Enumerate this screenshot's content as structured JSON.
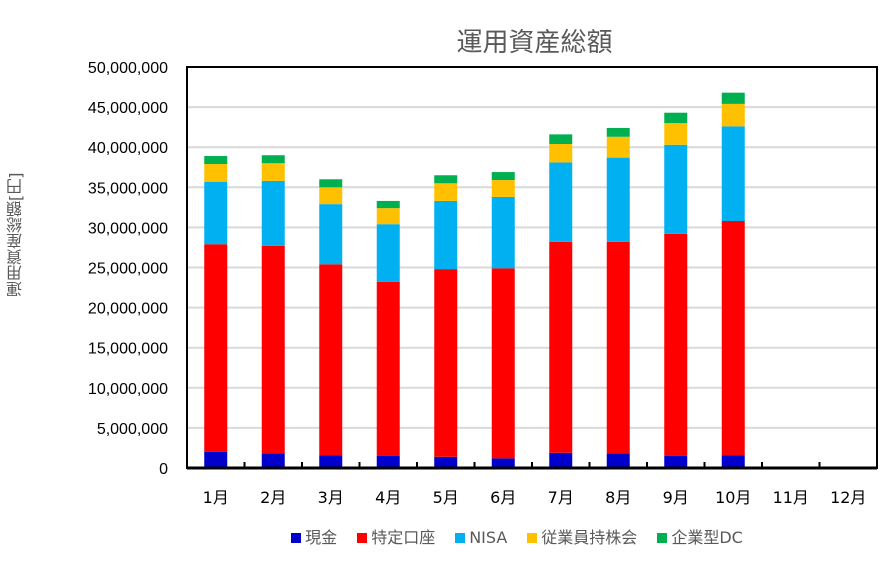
{
  "chart_data": {
    "type": "bar",
    "stacked": true,
    "title": "運用資産総額",
    "xlabel": "",
    "ylabel": "運用資産総額[円]",
    "ylim": [
      0,
      50000000
    ],
    "ytick_step": 5000000,
    "yticks": [
      "0",
      "5,000,000",
      "10,000,000",
      "15,000,000",
      "20,000,000",
      "25,000,000",
      "30,000,000",
      "35,000,000",
      "40,000,000",
      "45,000,000",
      "50,000,000"
    ],
    "grid": true,
    "legend_position": "bottom",
    "categories": [
      "1月",
      "2月",
      "3月",
      "4月",
      "5月",
      "6月",
      "7月",
      "8月",
      "9月",
      "10月",
      "11月",
      "12月"
    ],
    "series": [
      {
        "name": "現金",
        "color": "#0000CC",
        "values": [
          2000000,
          1800000,
          1600000,
          1500000,
          1400000,
          1200000,
          1900000,
          1800000,
          1500000,
          1600000,
          null,
          null
        ]
      },
      {
        "name": "特定口座",
        "color": "#FF0000",
        "values": [
          25900000,
          25900000,
          23800000,
          21700000,
          23400000,
          23700000,
          26300000,
          26400000,
          27700000,
          29200000,
          null,
          null
        ]
      },
      {
        "name": "NISA",
        "color": "#00B0F0",
        "values": [
          7800000,
          8100000,
          7500000,
          7200000,
          8500000,
          8900000,
          9900000,
          10500000,
          11100000,
          11800000,
          null,
          null
        ]
      },
      {
        "name": "従業員持株会",
        "color": "#FFC000",
        "values": [
          2200000,
          2200000,
          2100000,
          2000000,
          2200000,
          2100000,
          2300000,
          2600000,
          2700000,
          2800000,
          null,
          null
        ]
      },
      {
        "name": "企業型DC",
        "color": "#00B050",
        "values": [
          1000000,
          1000000,
          1000000,
          900000,
          1000000,
          1000000,
          1200000,
          1100000,
          1300000,
          1400000,
          null,
          null
        ]
      }
    ]
  }
}
